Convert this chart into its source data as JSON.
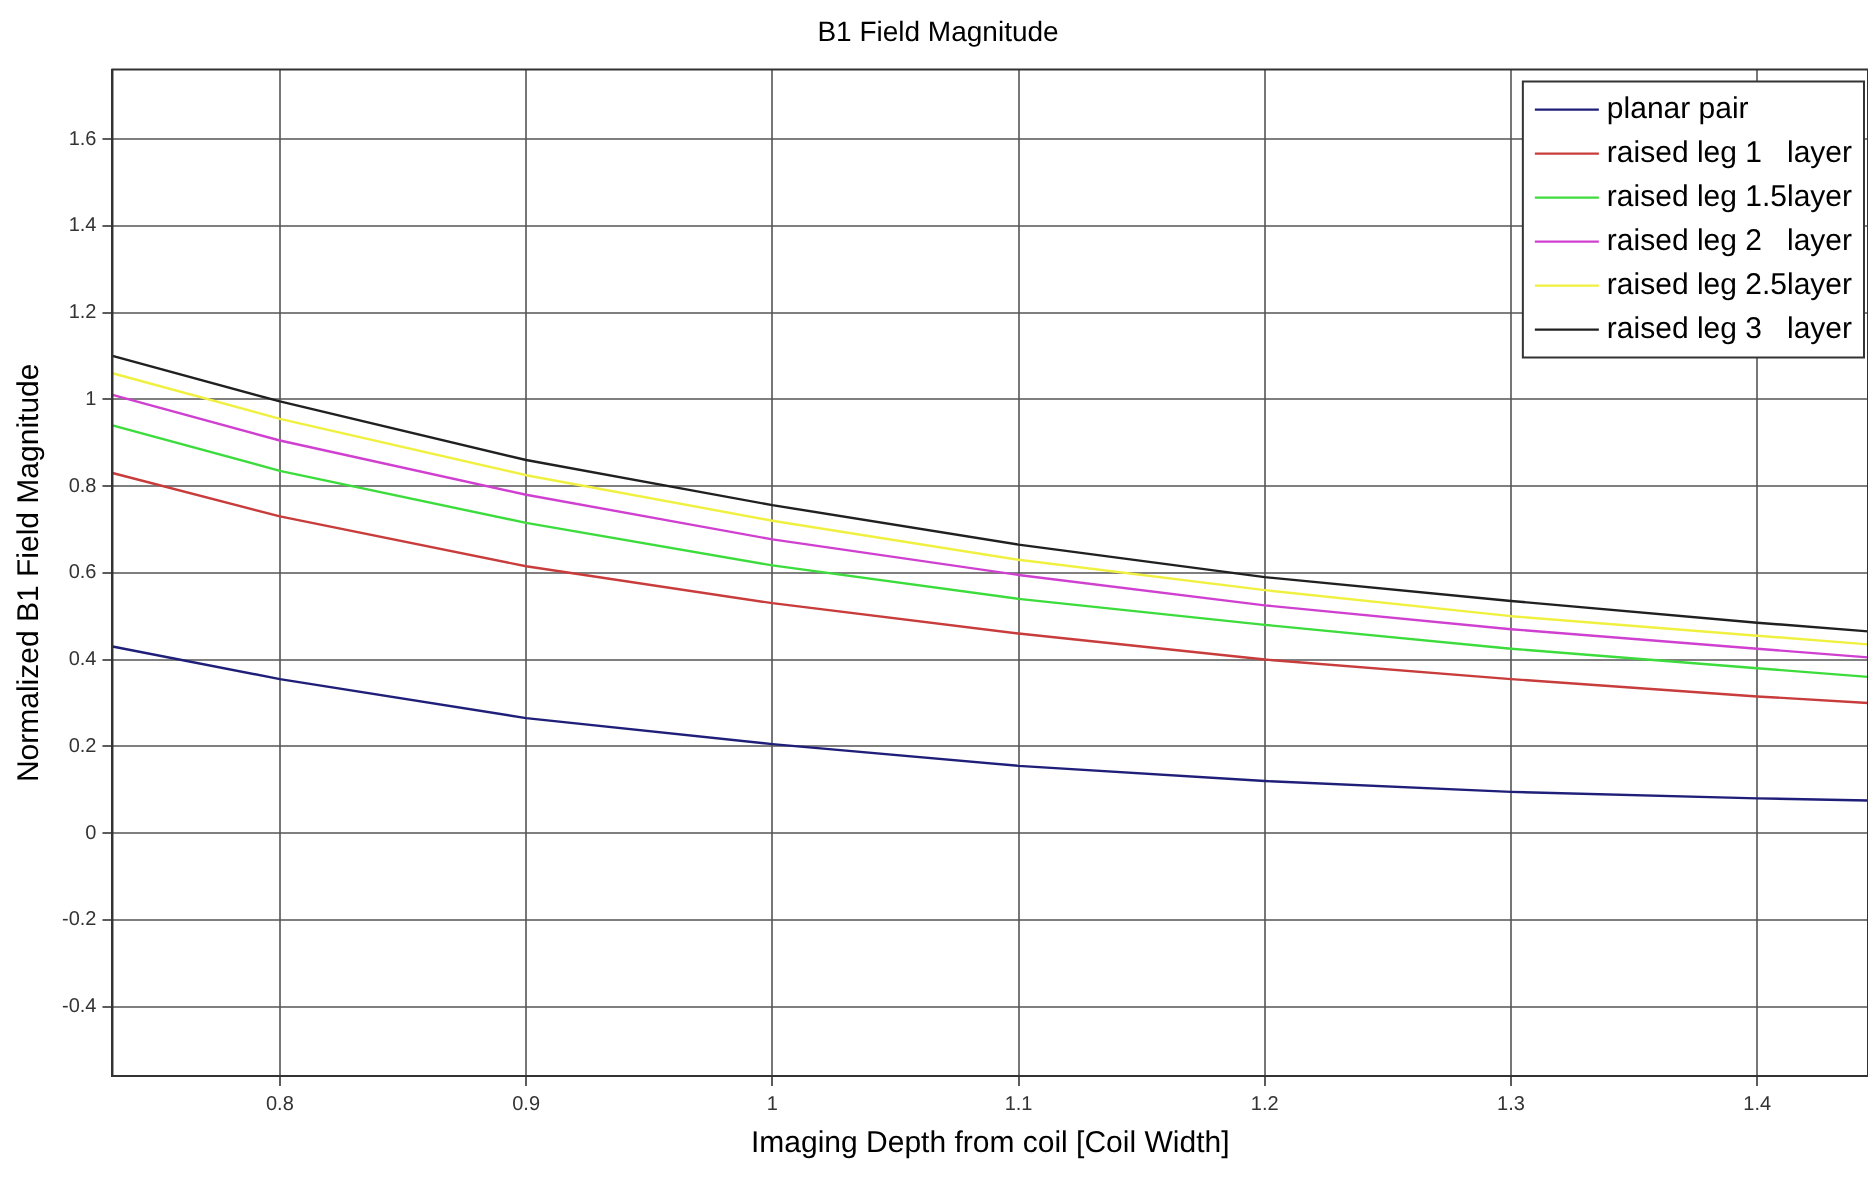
{
  "chart_data": {
    "type": "line",
    "title": "B1 Field Magnitude",
    "xlabel": "Imaging Depth from coil [Coil Width]",
    "ylabel": "Normalized B1 Field Magnitude",
    "x": [
      0.732,
      0.8,
      0.9,
      1.0,
      1.1,
      1.2,
      1.3,
      1.4,
      1.445
    ],
    "series": [
      {
        "name": "planar pair",
        "color": "#1f1f7a",
        "values": [
          0.43,
          0.355,
          0.265,
          0.205,
          0.155,
          0.12,
          0.095,
          0.08,
          0.075
        ]
      },
      {
        "name": "raised leg 1   layer",
        "color": "#c83c3c",
        "values": [
          0.83,
          0.73,
          0.615,
          0.53,
          0.46,
          0.4,
          0.355,
          0.315,
          0.3
        ]
      },
      {
        "name": "raised leg 1.5layer",
        "color": "#3cdc3c",
        "values": [
          0.94,
          0.835,
          0.715,
          0.617,
          0.54,
          0.48,
          0.425,
          0.38,
          0.36
        ]
      },
      {
        "name": "raised leg 2   layer",
        "color": "#d040d0",
        "values": [
          1.01,
          0.905,
          0.78,
          0.677,
          0.595,
          0.525,
          0.47,
          0.425,
          0.405
        ]
      },
      {
        "name": "raised leg 2.5layer",
        "color": "#f0f040",
        "values": [
          1.06,
          0.955,
          0.825,
          0.72,
          0.63,
          0.56,
          0.5,
          0.455,
          0.435
        ]
      },
      {
        "name": "raised leg 3   layer",
        "color": "#202020",
        "values": [
          1.1,
          0.995,
          0.86,
          0.756,
          0.665,
          0.59,
          0.535,
          0.485,
          0.465
        ]
      }
    ],
    "xlim": [
      0.732,
      1.445
    ],
    "xticks": [
      0.8,
      0.9,
      1,
      1.1,
      1.2,
      1.3,
      1.4
    ],
    "ylim": [
      -0.56,
      1.76
    ],
    "yticks": [
      -0.4,
      -0.2,
      0,
      0.2,
      0.4,
      0.6,
      0.8,
      1,
      1.2,
      1.4,
      1.6
    ],
    "grid": true,
    "legend": "top right",
    "marker": "none",
    "line_style": "solid"
  }
}
